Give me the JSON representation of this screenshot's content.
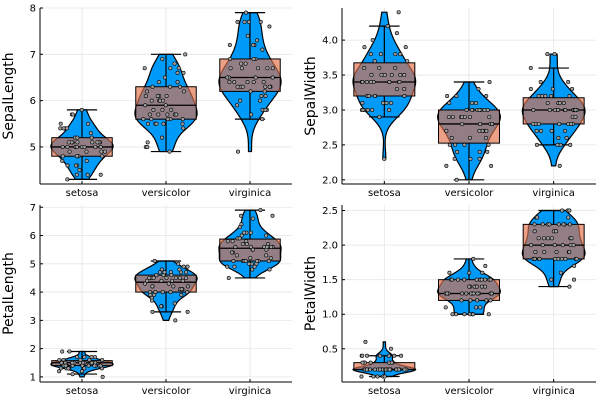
{
  "colors": {
    "violin": "#009af9",
    "box": "#e26f46",
    "grid": "#e5e5e5",
    "axis": "#000000"
  },
  "chart_data": [
    {
      "type": "violin",
      "ylabel": "SepalLength",
      "categories": [
        "setosa",
        "versicolor",
        "virginica"
      ],
      "ylim": [
        4.2,
        8.0
      ],
      "yticks": [
        5,
        6,
        7,
        8
      ],
      "yticklabels": [
        "5",
        "6",
        "7",
        "8"
      ],
      "grid": true,
      "series": [
        {
          "category": "setosa",
          "min": 4.3,
          "q1": 4.8,
          "median": 5.0,
          "q3": 5.2,
          "max": 5.8,
          "whisker_low": 4.3,
          "whisker_high": 5.8,
          "points": [
            5.1,
            4.9,
            4.7,
            4.6,
            5.0,
            5.4,
            4.6,
            5.0,
            4.4,
            4.9,
            5.4,
            4.8,
            4.8,
            4.3,
            5.8,
            5.7,
            5.4,
            5.1,
            5.7,
            5.1,
            5.4,
            5.1,
            4.6,
            5.1,
            4.8,
            5.0,
            5.0,
            5.2,
            5.2,
            4.7,
            4.8,
            5.4,
            5.2,
            5.5,
            4.9,
            5.0,
            5.5,
            4.9,
            4.4,
            5.1,
            5.0,
            4.5,
            4.4,
            5.0,
            5.1,
            4.8,
            5.1,
            4.6,
            5.3,
            5.0
          ]
        },
        {
          "category": "versicolor",
          "min": 4.9,
          "q1": 5.6,
          "median": 5.9,
          "q3": 6.3,
          "max": 7.0,
          "whisker_low": 4.9,
          "whisker_high": 7.0,
          "points": [
            7.0,
            6.4,
            6.9,
            5.5,
            6.5,
            5.7,
            6.3,
            4.9,
            6.6,
            5.2,
            5.0,
            5.9,
            6.0,
            6.1,
            5.6,
            6.7,
            5.6,
            5.8,
            6.2,
            5.6,
            5.9,
            6.1,
            6.3,
            6.1,
            6.4,
            6.6,
            6.8,
            6.7,
            6.0,
            5.7,
            5.5,
            5.5,
            5.8,
            6.0,
            5.4,
            6.0,
            6.7,
            6.3,
            5.6,
            5.5,
            5.5,
            6.1,
            5.8,
            5.0,
            5.6,
            5.7,
            5.7,
            6.2,
            5.1,
            5.7
          ]
        },
        {
          "category": "virginica",
          "min": 4.9,
          "q1": 6.2,
          "median": 6.5,
          "q3": 6.9,
          "max": 7.9,
          "whisker_low": 5.6,
          "whisker_high": 7.9,
          "points": [
            6.3,
            5.8,
            7.1,
            6.3,
            6.5,
            7.6,
            4.9,
            7.3,
            6.7,
            7.2,
            6.5,
            6.4,
            6.8,
            5.7,
            5.8,
            6.4,
            6.5,
            7.7,
            7.7,
            6.0,
            6.9,
            5.6,
            7.7,
            6.3,
            6.7,
            7.2,
            6.2,
            6.1,
            6.4,
            7.2,
            7.4,
            7.9,
            6.4,
            6.3,
            6.1,
            7.7,
            6.3,
            6.4,
            6.0,
            6.9,
            6.7,
            6.9,
            5.8,
            6.8,
            6.7,
            6.7,
            6.3,
            6.5,
            6.2,
            5.9
          ]
        }
      ]
    },
    {
      "type": "violin",
      "ylabel": "SepalWidth",
      "categories": [
        "setosa",
        "versicolor",
        "virginica"
      ],
      "ylim": [
        1.94,
        4.46
      ],
      "yticks": [
        2.0,
        2.5,
        3.0,
        3.5,
        4.0
      ],
      "yticklabels": [
        "2.0",
        "2.5",
        "3.0",
        "3.5",
        "4.0"
      ],
      "grid": true,
      "series": [
        {
          "category": "setosa",
          "min": 2.3,
          "q1": 3.2,
          "median": 3.4,
          "q3": 3.675,
          "max": 4.4,
          "whisker_low": 2.9,
          "whisker_high": 4.2,
          "points": [
            3.5,
            3.0,
            3.2,
            3.1,
            3.6,
            3.9,
            3.4,
            3.4,
            2.9,
            3.1,
            3.7,
            3.4,
            3.0,
            3.0,
            4.0,
            4.4,
            3.9,
            3.5,
            3.8,
            3.8,
            3.4,
            3.7,
            3.6,
            3.3,
            3.4,
            3.0,
            3.4,
            3.5,
            3.4,
            3.2,
            3.1,
            3.4,
            4.1,
            4.2,
            3.1,
            3.2,
            3.5,
            3.6,
            3.0,
            3.4,
            3.5,
            2.3,
            3.2,
            3.5,
            3.8,
            3.0,
            3.8,
            3.2,
            3.7,
            3.3
          ]
        },
        {
          "category": "versicolor",
          "min": 2.0,
          "q1": 2.525,
          "median": 2.8,
          "q3": 3.0,
          "max": 3.4,
          "whisker_low": 2.0,
          "whisker_high": 3.4,
          "points": [
            3.2,
            3.2,
            3.1,
            2.3,
            2.8,
            2.8,
            3.3,
            2.4,
            2.9,
            2.7,
            2.0,
            3.0,
            2.2,
            2.9,
            2.9,
            3.1,
            3.0,
            2.7,
            2.2,
            2.5,
            3.2,
            2.8,
            2.5,
            2.8,
            2.9,
            3.0,
            2.8,
            3.0,
            2.9,
            2.6,
            2.4,
            2.4,
            2.7,
            2.7,
            3.0,
            3.4,
            3.1,
            2.3,
            3.0,
            2.5,
            2.6,
            3.0,
            2.6,
            2.3,
            2.7,
            3.0,
            2.9,
            2.9,
            2.5,
            2.8
          ]
        },
        {
          "category": "virginica",
          "min": 2.2,
          "q1": 2.8,
          "median": 3.0,
          "q3": 3.175,
          "max": 3.8,
          "whisker_low": 2.5,
          "whisker_high": 3.6,
          "points": [
            3.3,
            2.7,
            3.0,
            2.9,
            3.0,
            3.0,
            2.5,
            2.9,
            2.5,
            3.6,
            3.2,
            2.7,
            3.0,
            2.5,
            2.8,
            3.2,
            3.0,
            3.8,
            2.6,
            2.2,
            3.2,
            2.8,
            2.8,
            2.7,
            3.3,
            3.2,
            2.8,
            3.0,
            2.8,
            3.0,
            2.8,
            3.8,
            2.8,
            2.8,
            2.6,
            3.0,
            3.4,
            3.1,
            3.0,
            3.1,
            3.1,
            3.1,
            2.7,
            3.2,
            3.3,
            3.0,
            2.5,
            3.0,
            3.4,
            3.0
          ]
        }
      ]
    },
    {
      "type": "violin",
      "ylabel": "PetalLength",
      "categories": [
        "setosa",
        "versicolor",
        "virginica"
      ],
      "ylim": [
        0.82,
        7.08
      ],
      "yticks": [
        1,
        2,
        3,
        4,
        5,
        6,
        7
      ],
      "yticklabels": [
        "1",
        "2",
        "3",
        "4",
        "5",
        "6",
        "7"
      ],
      "grid": true,
      "series": [
        {
          "category": "setosa",
          "min": 1.0,
          "q1": 1.4,
          "median": 1.5,
          "q3": 1.575,
          "max": 1.9,
          "whisker_low": 1.1,
          "whisker_high": 1.9,
          "points": [
            1.4,
            1.4,
            1.3,
            1.5,
            1.4,
            1.7,
            1.4,
            1.5,
            1.4,
            1.5,
            1.5,
            1.6,
            1.4,
            1.1,
            1.2,
            1.5,
            1.3,
            1.4,
            1.7,
            1.5,
            1.7,
            1.5,
            1.0,
            1.7,
            1.9,
            1.6,
            1.6,
            1.5,
            1.4,
            1.6,
            1.6,
            1.5,
            1.5,
            1.4,
            1.5,
            1.2,
            1.3,
            1.4,
            1.3,
            1.5,
            1.3,
            1.3,
            1.3,
            1.6,
            1.9,
            1.4,
            1.6,
            1.4,
            1.5,
            1.4
          ]
        },
        {
          "category": "versicolor",
          "min": 3.0,
          "q1": 4.0,
          "median": 4.35,
          "q3": 4.6,
          "max": 5.1,
          "whisker_low": 3.3,
          "whisker_high": 5.1,
          "points": [
            4.7,
            4.5,
            4.9,
            4.0,
            4.6,
            4.5,
            4.7,
            3.3,
            4.6,
            3.9,
            3.5,
            4.2,
            4.0,
            4.7,
            3.6,
            4.4,
            4.5,
            4.1,
            4.5,
            3.9,
            4.8,
            4.0,
            4.9,
            4.7,
            4.3,
            4.4,
            4.8,
            5.0,
            4.5,
            3.5,
            3.8,
            3.7,
            3.9,
            5.1,
            4.5,
            4.5,
            4.7,
            4.4,
            4.1,
            4.0,
            4.4,
            4.6,
            4.0,
            3.3,
            4.2,
            4.2,
            4.2,
            4.3,
            3.0,
            4.1
          ]
        },
        {
          "category": "virginica",
          "min": 4.5,
          "q1": 5.1,
          "median": 5.55,
          "q3": 5.875,
          "max": 6.9,
          "whisker_low": 4.5,
          "whisker_high": 6.9,
          "points": [
            6.0,
            5.1,
            5.9,
            5.6,
            5.8,
            6.6,
            4.5,
            6.3,
            5.8,
            6.1,
            5.1,
            5.3,
            5.5,
            5.0,
            5.1,
            5.3,
            5.5,
            6.7,
            6.9,
            5.0,
            5.7,
            4.9,
            6.7,
            4.9,
            5.7,
            6.0,
            4.8,
            4.9,
            5.6,
            5.8,
            6.1,
            6.4,
            5.6,
            5.1,
            5.6,
            6.1,
            5.6,
            5.5,
            4.8,
            5.4,
            5.6,
            5.1,
            5.1,
            5.9,
            5.7,
            5.2,
            5.0,
            5.2,
            5.4,
            5.1
          ]
        }
      ]
    },
    {
      "type": "violin",
      "ylabel": "PetalWidth",
      "categories": [
        "setosa",
        "versicolor",
        "virginica"
      ],
      "ylim": [
        0.02,
        2.58
      ],
      "yticks": [
        0.5,
        1.0,
        1.5,
        2.0,
        2.5
      ],
      "yticklabels": [
        "0.5",
        "1.0",
        "1.5",
        "2.0",
        "2.5"
      ],
      "grid": true,
      "series": [
        {
          "category": "setosa",
          "min": 0.1,
          "q1": 0.2,
          "median": 0.2,
          "q3": 0.3,
          "max": 0.6,
          "whisker_low": 0.1,
          "whisker_high": 0.4,
          "points": [
            0.2,
            0.2,
            0.2,
            0.2,
            0.2,
            0.4,
            0.3,
            0.2,
            0.2,
            0.1,
            0.2,
            0.2,
            0.1,
            0.1,
            0.2,
            0.4,
            0.4,
            0.3,
            0.3,
            0.3,
            0.2,
            0.4,
            0.2,
            0.5,
            0.2,
            0.2,
            0.4,
            0.2,
            0.2,
            0.2,
            0.2,
            0.4,
            0.1,
            0.2,
            0.2,
            0.2,
            0.2,
            0.1,
            0.2,
            0.2,
            0.3,
            0.3,
            0.2,
            0.6,
            0.4,
            0.3,
            0.2,
            0.2,
            0.2,
            0.2
          ]
        },
        {
          "category": "versicolor",
          "min": 1.0,
          "q1": 1.2,
          "median": 1.3,
          "q3": 1.5,
          "max": 1.8,
          "whisker_low": 1.0,
          "whisker_high": 1.8,
          "points": [
            1.4,
            1.5,
            1.5,
            1.3,
            1.5,
            1.3,
            1.6,
            1.0,
            1.3,
            1.4,
            1.0,
            1.5,
            1.0,
            1.4,
            1.3,
            1.4,
            1.5,
            1.0,
            1.5,
            1.1,
            1.8,
            1.3,
            1.5,
            1.2,
            1.3,
            1.4,
            1.4,
            1.7,
            1.5,
            1.0,
            1.1,
            1.0,
            1.2,
            1.6,
            1.5,
            1.6,
            1.5,
            1.3,
            1.3,
            1.3,
            1.2,
            1.4,
            1.2,
            1.0,
            1.3,
            1.2,
            1.3,
            1.3,
            1.1,
            1.3
          ]
        },
        {
          "category": "virginica",
          "min": 1.4,
          "q1": 1.8,
          "median": 2.0,
          "q3": 2.3,
          "max": 2.5,
          "whisker_low": 1.4,
          "whisker_high": 2.5,
          "points": [
            2.5,
            1.9,
            2.1,
            1.8,
            2.2,
            2.1,
            1.7,
            1.8,
            1.8,
            2.5,
            2.0,
            1.9,
            2.1,
            2.0,
            2.4,
            2.3,
            1.8,
            2.2,
            2.3,
            1.5,
            2.3,
            2.0,
            2.0,
            1.8,
            2.1,
            1.8,
            1.8,
            1.8,
            2.1,
            1.6,
            1.9,
            2.0,
            2.2,
            1.5,
            1.4,
            2.3,
            2.4,
            1.8,
            1.8,
            2.1,
            2.4,
            2.3,
            1.9,
            2.3,
            2.5,
            2.3,
            1.9,
            2.0,
            2.3,
            1.8
          ]
        }
      ]
    }
  ]
}
